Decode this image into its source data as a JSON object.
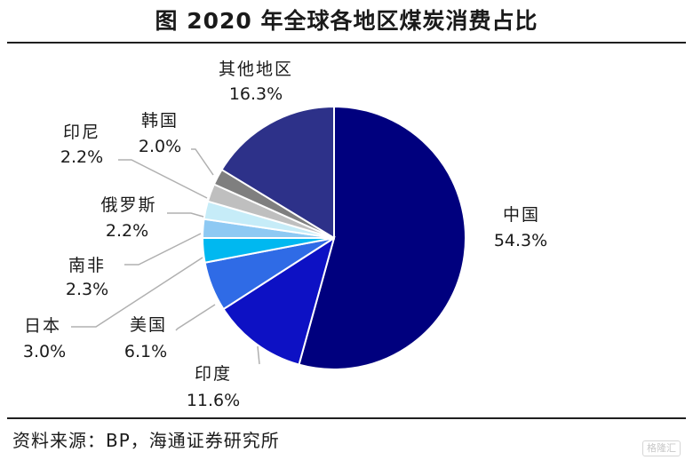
{
  "title": "图 2020 年全球各地区煤炭消费占比",
  "source": "资料来源：BP，海通证券研究所",
  "watermark": "格隆汇",
  "chart_data": {
    "type": "pie",
    "title": "图 2020 年全球各地区煤炭消费占比",
    "unit": "%",
    "start_angle_deg": 90,
    "direction": "clockwise",
    "slices": [
      {
        "name": "中国",
        "value": 54.3,
        "label": "54.3%",
        "color": "#00007e"
      },
      {
        "name": "印度",
        "value": 11.6,
        "label": "11.6%",
        "color": "#0d11c4"
      },
      {
        "name": "美国",
        "value": 6.1,
        "label": "6.1%",
        "color": "#2f6be6"
      },
      {
        "name": "日本",
        "value": 3.0,
        "label": "3.0%",
        "color": "#00b8f0"
      },
      {
        "name": "南非",
        "value": 2.3,
        "label": "2.3%",
        "color": "#8ec9f3"
      },
      {
        "name": "俄罗斯",
        "value": 2.2,
        "label": "2.2%",
        "color": "#c6ecf8"
      },
      {
        "name": "印尼",
        "value": 2.2,
        "label": "2.2%",
        "color": "#bfbfbf"
      },
      {
        "name": "韩国",
        "value": 2.0,
        "label": "2.0%",
        "color": "#7f7f7f"
      },
      {
        "name": "其他地区",
        "value": 16.3,
        "label": "16.3%",
        "color": "#2d3189"
      }
    ]
  }
}
